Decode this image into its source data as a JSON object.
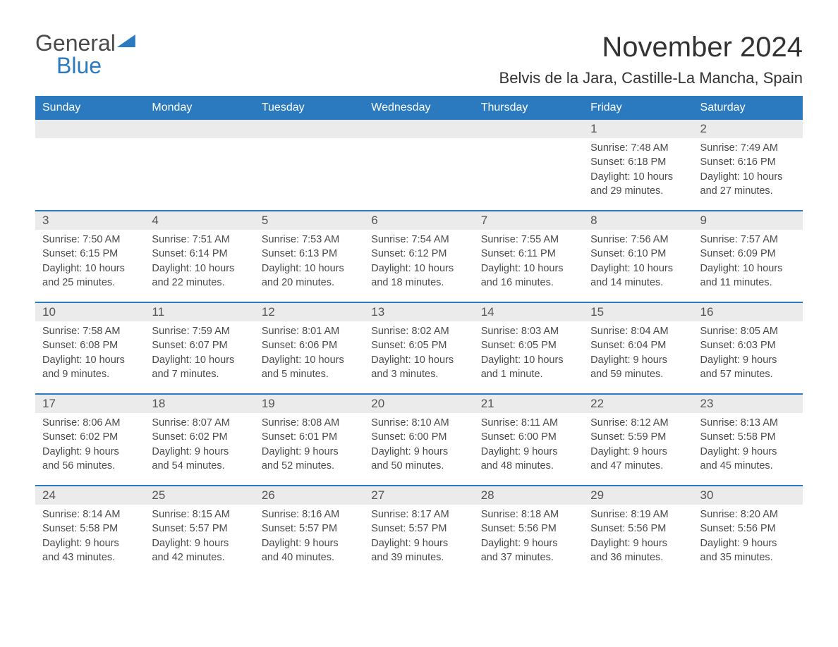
{
  "logo": {
    "line1": "General",
    "line2": "Blue"
  },
  "header": {
    "month_title": "November 2024",
    "location": "Belvis de la Jara, Castille-La Mancha, Spain"
  },
  "colors": {
    "header_bg": "#2b7abf",
    "header_text": "#ffffff",
    "daynum_bg": "#ebebeb",
    "text": "#4a4a4a",
    "border": "#2b7abf"
  },
  "weekdays": [
    "Sunday",
    "Monday",
    "Tuesday",
    "Wednesday",
    "Thursday",
    "Friday",
    "Saturday"
  ],
  "weeks": [
    [
      {
        "day": "",
        "sunrise": "",
        "sunset": "",
        "daylight1": "",
        "daylight2": ""
      },
      {
        "day": "",
        "sunrise": "",
        "sunset": "",
        "daylight1": "",
        "daylight2": ""
      },
      {
        "day": "",
        "sunrise": "",
        "sunset": "",
        "daylight1": "",
        "daylight2": ""
      },
      {
        "day": "",
        "sunrise": "",
        "sunset": "",
        "daylight1": "",
        "daylight2": ""
      },
      {
        "day": "",
        "sunrise": "",
        "sunset": "",
        "daylight1": "",
        "daylight2": ""
      },
      {
        "day": "1",
        "sunrise": "Sunrise: 7:48 AM",
        "sunset": "Sunset: 6:18 PM",
        "daylight1": "Daylight: 10 hours",
        "daylight2": "and 29 minutes."
      },
      {
        "day": "2",
        "sunrise": "Sunrise: 7:49 AM",
        "sunset": "Sunset: 6:16 PM",
        "daylight1": "Daylight: 10 hours",
        "daylight2": "and 27 minutes."
      }
    ],
    [
      {
        "day": "3",
        "sunrise": "Sunrise: 7:50 AM",
        "sunset": "Sunset: 6:15 PM",
        "daylight1": "Daylight: 10 hours",
        "daylight2": "and 25 minutes."
      },
      {
        "day": "4",
        "sunrise": "Sunrise: 7:51 AM",
        "sunset": "Sunset: 6:14 PM",
        "daylight1": "Daylight: 10 hours",
        "daylight2": "and 22 minutes."
      },
      {
        "day": "5",
        "sunrise": "Sunrise: 7:53 AM",
        "sunset": "Sunset: 6:13 PM",
        "daylight1": "Daylight: 10 hours",
        "daylight2": "and 20 minutes."
      },
      {
        "day": "6",
        "sunrise": "Sunrise: 7:54 AM",
        "sunset": "Sunset: 6:12 PM",
        "daylight1": "Daylight: 10 hours",
        "daylight2": "and 18 minutes."
      },
      {
        "day": "7",
        "sunrise": "Sunrise: 7:55 AM",
        "sunset": "Sunset: 6:11 PM",
        "daylight1": "Daylight: 10 hours",
        "daylight2": "and 16 minutes."
      },
      {
        "day": "8",
        "sunrise": "Sunrise: 7:56 AM",
        "sunset": "Sunset: 6:10 PM",
        "daylight1": "Daylight: 10 hours",
        "daylight2": "and 14 minutes."
      },
      {
        "day": "9",
        "sunrise": "Sunrise: 7:57 AM",
        "sunset": "Sunset: 6:09 PM",
        "daylight1": "Daylight: 10 hours",
        "daylight2": "and 11 minutes."
      }
    ],
    [
      {
        "day": "10",
        "sunrise": "Sunrise: 7:58 AM",
        "sunset": "Sunset: 6:08 PM",
        "daylight1": "Daylight: 10 hours",
        "daylight2": "and 9 minutes."
      },
      {
        "day": "11",
        "sunrise": "Sunrise: 7:59 AM",
        "sunset": "Sunset: 6:07 PM",
        "daylight1": "Daylight: 10 hours",
        "daylight2": "and 7 minutes."
      },
      {
        "day": "12",
        "sunrise": "Sunrise: 8:01 AM",
        "sunset": "Sunset: 6:06 PM",
        "daylight1": "Daylight: 10 hours",
        "daylight2": "and 5 minutes."
      },
      {
        "day": "13",
        "sunrise": "Sunrise: 8:02 AM",
        "sunset": "Sunset: 6:05 PM",
        "daylight1": "Daylight: 10 hours",
        "daylight2": "and 3 minutes."
      },
      {
        "day": "14",
        "sunrise": "Sunrise: 8:03 AM",
        "sunset": "Sunset: 6:05 PM",
        "daylight1": "Daylight: 10 hours",
        "daylight2": "and 1 minute."
      },
      {
        "day": "15",
        "sunrise": "Sunrise: 8:04 AM",
        "sunset": "Sunset: 6:04 PM",
        "daylight1": "Daylight: 9 hours",
        "daylight2": "and 59 minutes."
      },
      {
        "day": "16",
        "sunrise": "Sunrise: 8:05 AM",
        "sunset": "Sunset: 6:03 PM",
        "daylight1": "Daylight: 9 hours",
        "daylight2": "and 57 minutes."
      }
    ],
    [
      {
        "day": "17",
        "sunrise": "Sunrise: 8:06 AM",
        "sunset": "Sunset: 6:02 PM",
        "daylight1": "Daylight: 9 hours",
        "daylight2": "and 56 minutes."
      },
      {
        "day": "18",
        "sunrise": "Sunrise: 8:07 AM",
        "sunset": "Sunset: 6:02 PM",
        "daylight1": "Daylight: 9 hours",
        "daylight2": "and 54 minutes."
      },
      {
        "day": "19",
        "sunrise": "Sunrise: 8:08 AM",
        "sunset": "Sunset: 6:01 PM",
        "daylight1": "Daylight: 9 hours",
        "daylight2": "and 52 minutes."
      },
      {
        "day": "20",
        "sunrise": "Sunrise: 8:10 AM",
        "sunset": "Sunset: 6:00 PM",
        "daylight1": "Daylight: 9 hours",
        "daylight2": "and 50 minutes."
      },
      {
        "day": "21",
        "sunrise": "Sunrise: 8:11 AM",
        "sunset": "Sunset: 6:00 PM",
        "daylight1": "Daylight: 9 hours",
        "daylight2": "and 48 minutes."
      },
      {
        "day": "22",
        "sunrise": "Sunrise: 8:12 AM",
        "sunset": "Sunset: 5:59 PM",
        "daylight1": "Daylight: 9 hours",
        "daylight2": "and 47 minutes."
      },
      {
        "day": "23",
        "sunrise": "Sunrise: 8:13 AM",
        "sunset": "Sunset: 5:58 PM",
        "daylight1": "Daylight: 9 hours",
        "daylight2": "and 45 minutes."
      }
    ],
    [
      {
        "day": "24",
        "sunrise": "Sunrise: 8:14 AM",
        "sunset": "Sunset: 5:58 PM",
        "daylight1": "Daylight: 9 hours",
        "daylight2": "and 43 minutes."
      },
      {
        "day": "25",
        "sunrise": "Sunrise: 8:15 AM",
        "sunset": "Sunset: 5:57 PM",
        "daylight1": "Daylight: 9 hours",
        "daylight2": "and 42 minutes."
      },
      {
        "day": "26",
        "sunrise": "Sunrise: 8:16 AM",
        "sunset": "Sunset: 5:57 PM",
        "daylight1": "Daylight: 9 hours",
        "daylight2": "and 40 minutes."
      },
      {
        "day": "27",
        "sunrise": "Sunrise: 8:17 AM",
        "sunset": "Sunset: 5:57 PM",
        "daylight1": "Daylight: 9 hours",
        "daylight2": "and 39 minutes."
      },
      {
        "day": "28",
        "sunrise": "Sunrise: 8:18 AM",
        "sunset": "Sunset: 5:56 PM",
        "daylight1": "Daylight: 9 hours",
        "daylight2": "and 37 minutes."
      },
      {
        "day": "29",
        "sunrise": "Sunrise: 8:19 AM",
        "sunset": "Sunset: 5:56 PM",
        "daylight1": "Daylight: 9 hours",
        "daylight2": "and 36 minutes."
      },
      {
        "day": "30",
        "sunrise": "Sunrise: 8:20 AM",
        "sunset": "Sunset: 5:56 PM",
        "daylight1": "Daylight: 9 hours",
        "daylight2": "and 35 minutes."
      }
    ]
  ]
}
